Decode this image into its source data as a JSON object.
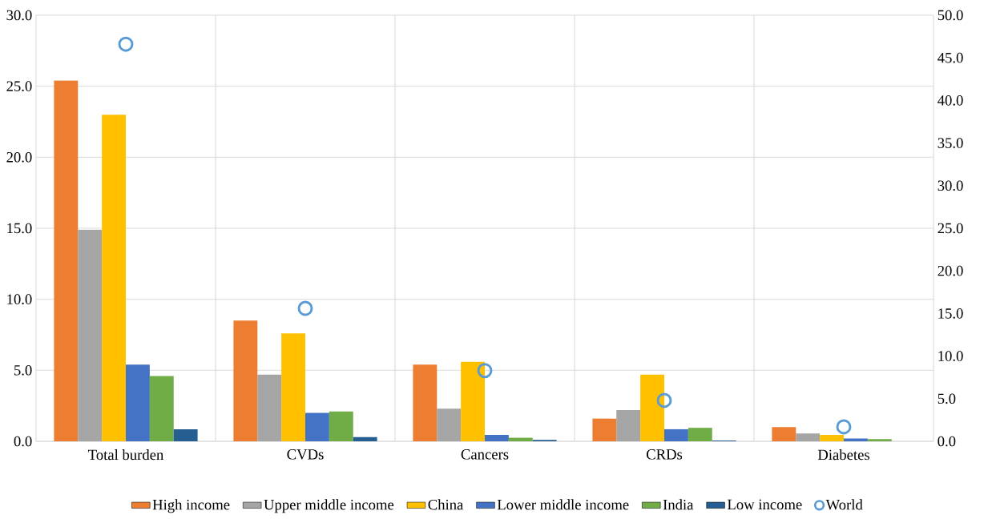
{
  "chart_data": {
    "type": "bar",
    "categories": [
      "Total burden",
      "CVDs",
      "Cancers",
      "CRDs",
      "Diabetes"
    ],
    "series": [
      {
        "name": "High income",
        "color": "#ed7d31",
        "values": [
          25.4,
          8.5,
          5.4,
          1.6,
          1.0
        ]
      },
      {
        "name": "Upper middle income",
        "color": "#a5a5a5",
        "values": [
          14.9,
          4.7,
          2.3,
          2.2,
          0.55
        ]
      },
      {
        "name": "China",
        "color": "#ffc000",
        "values": [
          23.0,
          7.6,
          5.6,
          4.7,
          0.45
        ]
      },
      {
        "name": "Lower middle income",
        "color": "#4472c4",
        "values": [
          5.4,
          2.0,
          0.45,
          0.85,
          0.2
        ]
      },
      {
        "name": "India",
        "color": "#70ad47",
        "values": [
          4.6,
          2.1,
          0.25,
          0.95,
          0.15
        ]
      },
      {
        "name": "Low income",
        "color": "#255e91",
        "values": [
          0.85,
          0.3,
          0.1,
          0.05,
          null
        ]
      },
      {
        "name": "World",
        "type": "scatter",
        "axis": "y2",
        "marker": "circle",
        "color": "#5b9bd5",
        "values": [
          46.6,
          15.6,
          8.3,
          4.8,
          1.7
        ]
      }
    ],
    "ylim": [
      0,
      30
    ],
    "yticks": [
      {
        "value": 0,
        "label": "0.0"
      },
      {
        "value": 5,
        "label": "5.0"
      },
      {
        "value": 10,
        "label": "10.0"
      },
      {
        "value": 15,
        "label": "15.0"
      },
      {
        "value": 20,
        "label": "20.0"
      },
      {
        "value": 25,
        "label": "25.0"
      },
      {
        "value": 30,
        "label": "30.0"
      }
    ],
    "y2lim": [
      0,
      50
    ],
    "y2ticks": [
      {
        "value": 0,
        "label": "0.0"
      },
      {
        "value": 5,
        "label": "5.0"
      },
      {
        "value": 10,
        "label": "10.0"
      },
      {
        "value": 15,
        "label": "15.0"
      },
      {
        "value": 20,
        "label": "20.0"
      },
      {
        "value": 25,
        "label": "25.0"
      },
      {
        "value": 30,
        "label": "30.0"
      },
      {
        "value": 35,
        "label": "35.0"
      },
      {
        "value": 40,
        "label": "40.0"
      },
      {
        "value": 45,
        "label": "45.0"
      },
      {
        "value": 50,
        "label": "50.0"
      }
    ],
    "grid": true,
    "legend": "bottom"
  }
}
